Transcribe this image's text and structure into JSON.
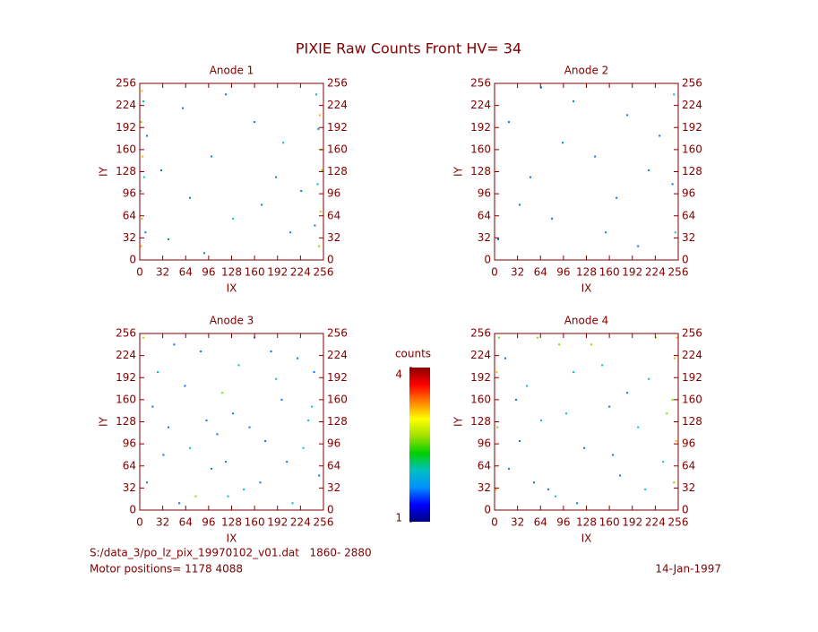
{
  "title": "PIXIE Raw Counts Front HV= 34",
  "chart_data": [
    {
      "type": "scatter",
      "title": "Anode 1",
      "xlabel": "IX",
      "ylabel": "IY",
      "xlim": [
        0,
        256
      ],
      "ylim": [
        0,
        256
      ],
      "xticks": [
        0,
        32,
        64,
        96,
        128,
        160,
        192,
        224,
        256
      ],
      "yticks": [
        0,
        32,
        64,
        96,
        128,
        160,
        192,
        224,
        256
      ],
      "x": [
        2,
        3,
        1,
        4,
        2,
        5,
        8,
        10,
        6,
        3,
        250,
        252,
        248,
        253,
        251,
        246,
        244,
        249,
        254,
        40,
        70,
        100,
        130,
        160,
        190,
        210,
        60,
        120,
        200,
        90,
        30,
        170,
        225
      ],
      "y": [
        20,
        60,
        100,
        150,
        200,
        230,
        40,
        180,
        120,
        245,
        20,
        70,
        110,
        160,
        210,
        240,
        50,
        190,
        130,
        30,
        90,
        150,
        60,
        200,
        120,
        40,
        220,
        240,
        170,
        10,
        130,
        80,
        100
      ],
      "counts": [
        3.2,
        2.6,
        2,
        3.2,
        2.6,
        2,
        1.6,
        1.6,
        2,
        3.2,
        2.6,
        3.2,
        2,
        2.6,
        3.2,
        2,
        1.6,
        1.6,
        2.6,
        1.6,
        1.6,
        1.6,
        2,
        1.6,
        1.6,
        1.6,
        1.6,
        1.6,
        2,
        1.6,
        1.6,
        1.6,
        1.6
      ]
    },
    {
      "type": "scatter",
      "title": "Anode 2",
      "xlabel": "IX",
      "ylabel": "IY",
      "xlim": [
        0,
        256
      ],
      "ylim": [
        0,
        256
      ],
      "xticks": [
        0,
        32,
        64,
        96,
        128,
        160,
        192,
        224,
        256
      ],
      "yticks": [
        0,
        32,
        64,
        96,
        128,
        160,
        192,
        224,
        256
      ],
      "x": [
        5,
        20,
        50,
        80,
        110,
        140,
        170,
        200,
        230,
        250,
        252,
        248,
        35,
        95,
        155,
        215,
        65,
        185
      ],
      "y": [
        30,
        200,
        120,
        60,
        230,
        150,
        90,
        20,
        180,
        240,
        40,
        110,
        80,
        170,
        40,
        130,
        250,
        210
      ],
      "counts": [
        1.6,
        1.6,
        1.6,
        1.6,
        1.6,
        1.6,
        1.6,
        1.6,
        1.6,
        2,
        2,
        1.6,
        1.6,
        1.6,
        1.6,
        1.6,
        1.6,
        1.6
      ]
    },
    {
      "type": "scatter",
      "title": "Anode 3",
      "xlabel": "IX",
      "ylabel": "IY",
      "xlim": [
        0,
        256
      ],
      "ylim": [
        0,
        256
      ],
      "xticks": [
        0,
        32,
        64,
        96,
        128,
        160,
        192,
        224,
        256
      ],
      "yticks": [
        0,
        32,
        64,
        96,
        128,
        160,
        192,
        224,
        256
      ],
      "x": [
        10,
        25,
        40,
        55,
        70,
        85,
        100,
        115,
        130,
        145,
        160,
        175,
        190,
        205,
        220,
        235,
        250,
        18,
        48,
        78,
        108,
        138,
        168,
        198,
        228,
        33,
        63,
        93,
        123,
        153,
        183,
        213,
        243,
        5,
        120,
        240
      ],
      "y": [
        40,
        200,
        120,
        10,
        90,
        230,
        60,
        170,
        140,
        30,
        250,
        100,
        190,
        70,
        220,
        130,
        50,
        150,
        240,
        20,
        110,
        210,
        40,
        160,
        90,
        80,
        180,
        130,
        20,
        120,
        230,
        10,
        200,
        250,
        70,
        150
      ],
      "counts": [
        1.6,
        2,
        1.6,
        1.6,
        2,
        1.6,
        1.6,
        2.6,
        1.6,
        2,
        1.6,
        1.6,
        2,
        1.6,
        1.6,
        2,
        1.6,
        1.6,
        1.6,
        2.6,
        1.6,
        2,
        1.6,
        1.6,
        2,
        1.6,
        1.6,
        1.6,
        2,
        1.6,
        1.6,
        2,
        1.6,
        3.2,
        1.6,
        2
      ]
    },
    {
      "type": "scatter",
      "title": "Anode 4",
      "xlabel": "IX",
      "ylabel": "IY",
      "xlim": [
        0,
        256
      ],
      "ylim": [
        0,
        256
      ],
      "xticks": [
        0,
        32,
        64,
        96,
        128,
        160,
        192,
        224,
        256
      ],
      "yticks": [
        0,
        32,
        64,
        96,
        128,
        160,
        192,
        224,
        256
      ],
      "x": [
        2,
        4,
        3,
        6,
        250,
        253,
        248,
        251,
        254,
        20,
        45,
        60,
        75,
        100,
        125,
        150,
        175,
        200,
        225,
        35,
        85,
        135,
        185,
        235,
        15,
        65,
        115,
        165,
        215,
        240,
        55,
        110,
        160,
        210,
        30,
        90
      ],
      "y": [
        30,
        120,
        200,
        250,
        40,
        100,
        160,
        220,
        250,
        60,
        180,
        250,
        30,
        140,
        90,
        210,
        50,
        120,
        250,
        100,
        20,
        240,
        170,
        70,
        220,
        130,
        10,
        80,
        190,
        140,
        40,
        200,
        150,
        30,
        160,
        240
      ],
      "counts": [
        3.2,
        2.6,
        3.2,
        2.6,
        2.6,
        3.2,
        2.6,
        3.2,
        3.2,
        1.6,
        2,
        2.6,
        1.6,
        2,
        1.6,
        2,
        1.6,
        2,
        2.6,
        1.6,
        2,
        2.6,
        1.6,
        2,
        1.6,
        2,
        1.6,
        1.6,
        2,
        2.6,
        1.6,
        2,
        1.6,
        2,
        1.6,
        2.6
      ]
    }
  ],
  "colorbar": {
    "label": "counts",
    "lim": [
      1,
      4
    ],
    "ticks": [
      1,
      4
    ],
    "colors": [
      "#00007f",
      "#0000ff",
      "#0090ff",
      "#00c0c0",
      "#00d000",
      "#a0e000",
      "#ffff00",
      "#ff8000",
      "#ff0000",
      "#8b0000"
    ]
  },
  "footer": {
    "file": "S:/data_3/po_lz_pix_19970102_v01.dat   1860- 2880",
    "motor": "Motor positions= 1178 4088",
    "date": "14-Jan-1997"
  }
}
